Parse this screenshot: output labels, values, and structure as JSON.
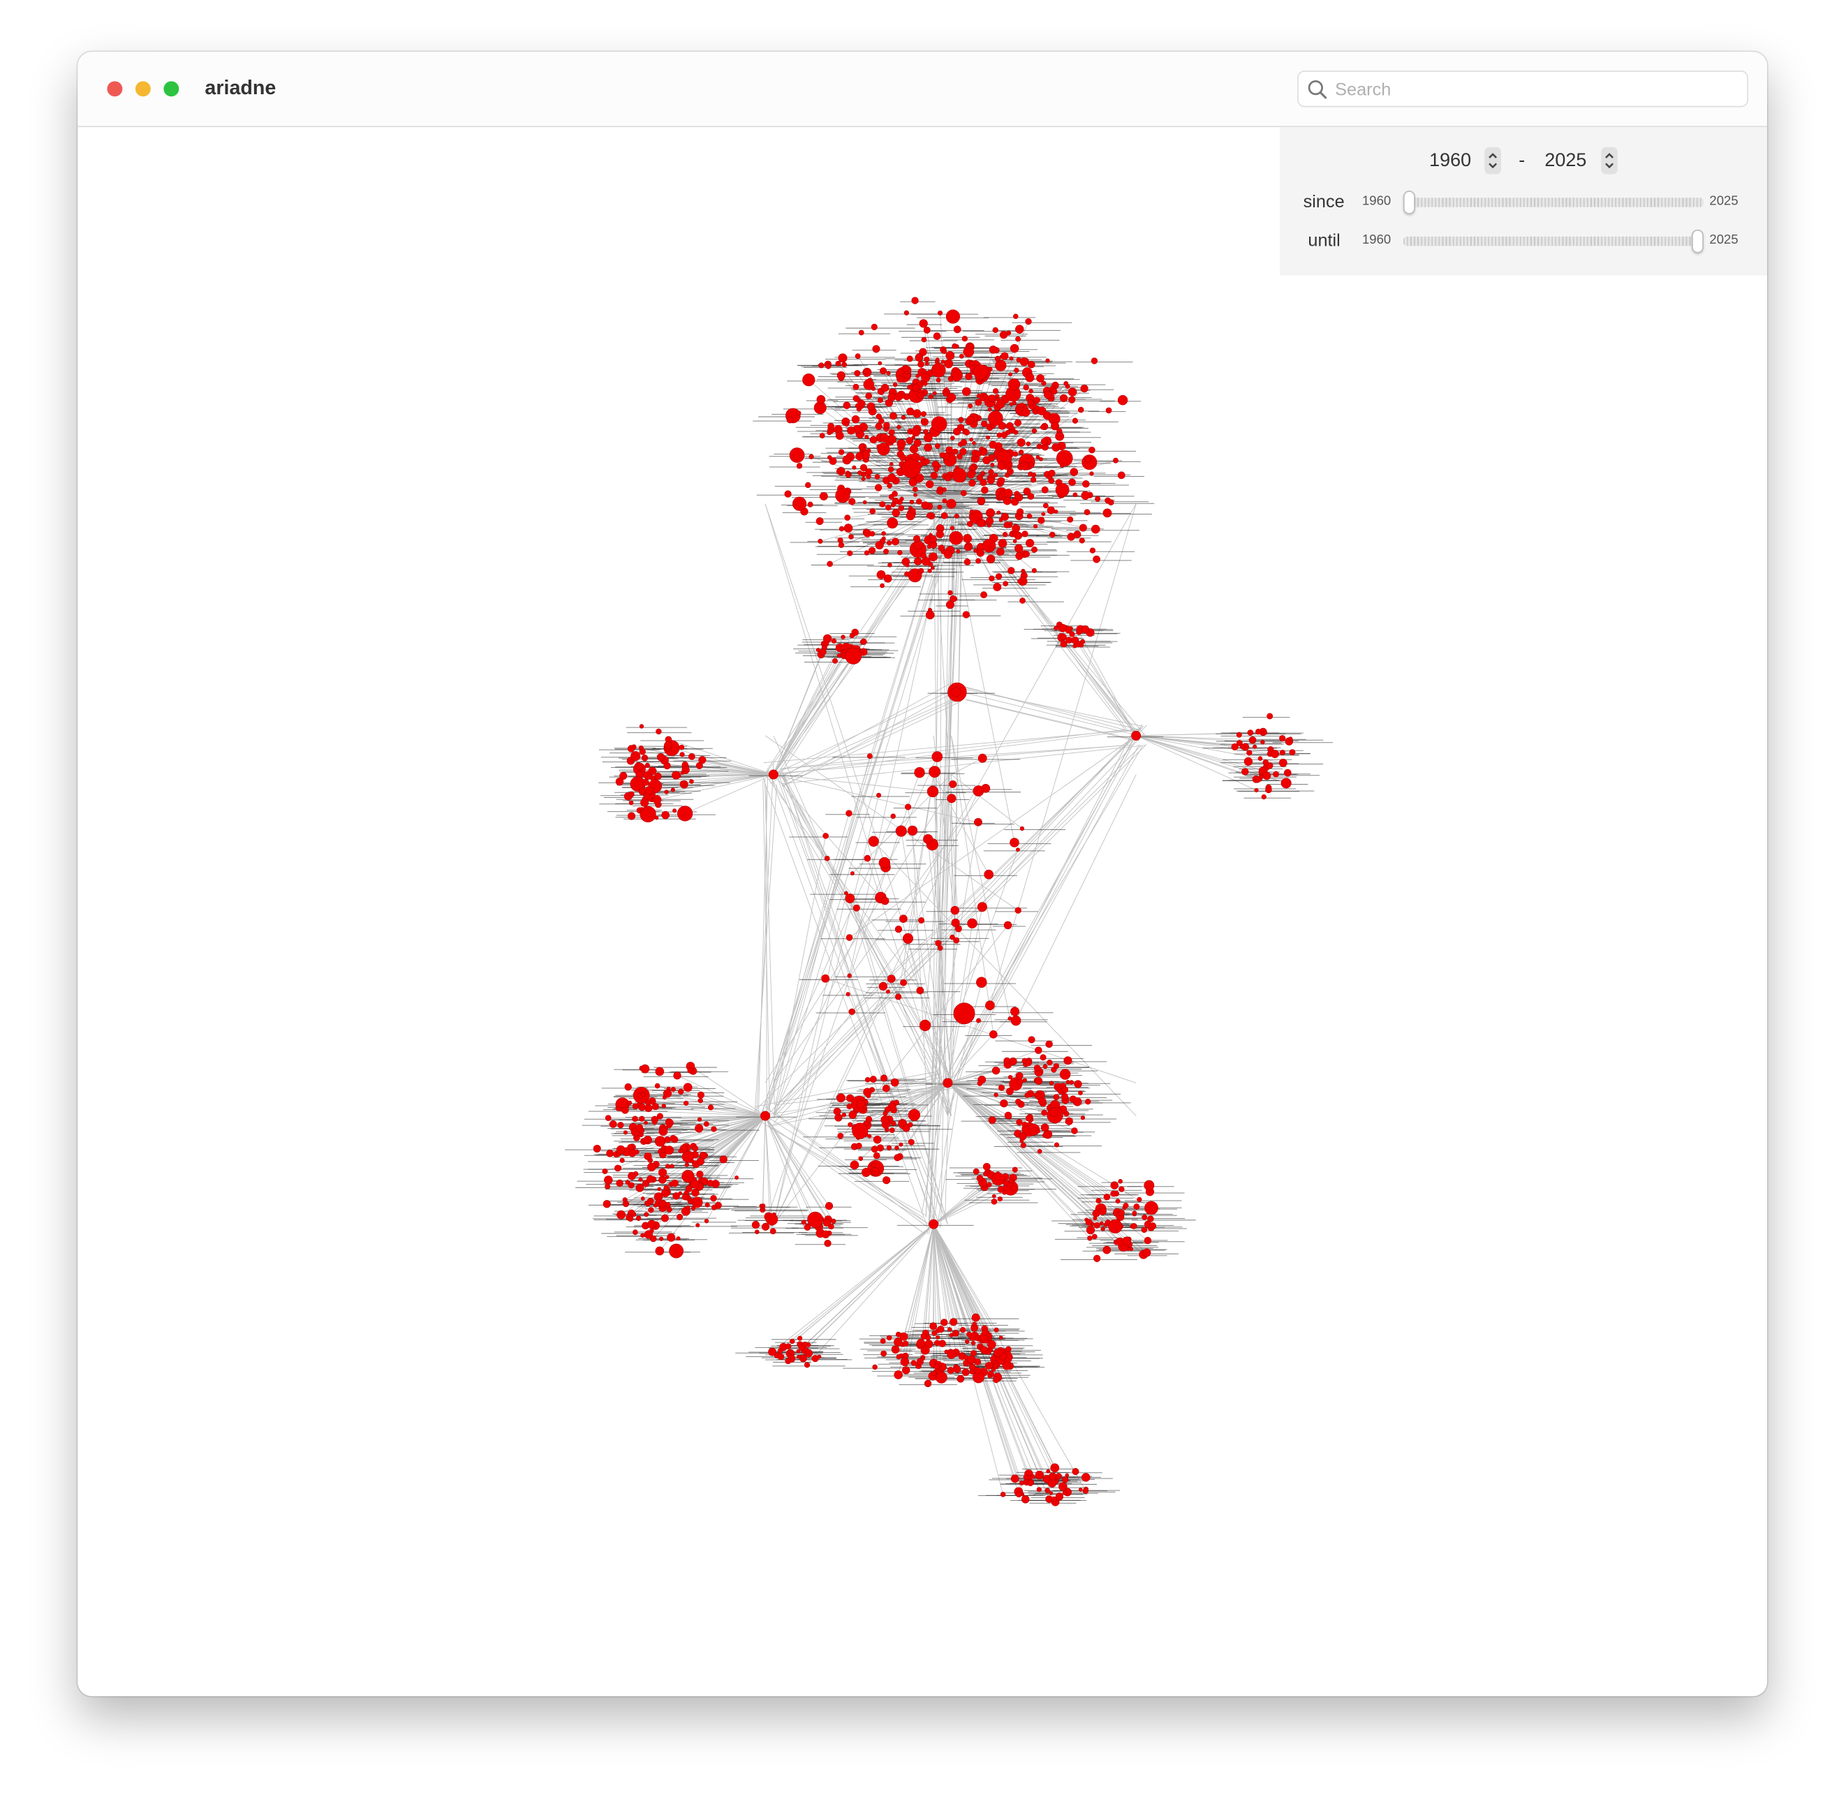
{
  "window": {
    "title": "ariadne"
  },
  "search": {
    "placeholder": "Search"
  },
  "year_range": {
    "from": 1960,
    "separator": "-",
    "to": 2025
  },
  "since": {
    "label": "since",
    "min": 1960,
    "max": 2025,
    "value": 1960
  },
  "until": {
    "label": "until",
    "min": 1960,
    "max": 2025,
    "value": 2025
  }
}
